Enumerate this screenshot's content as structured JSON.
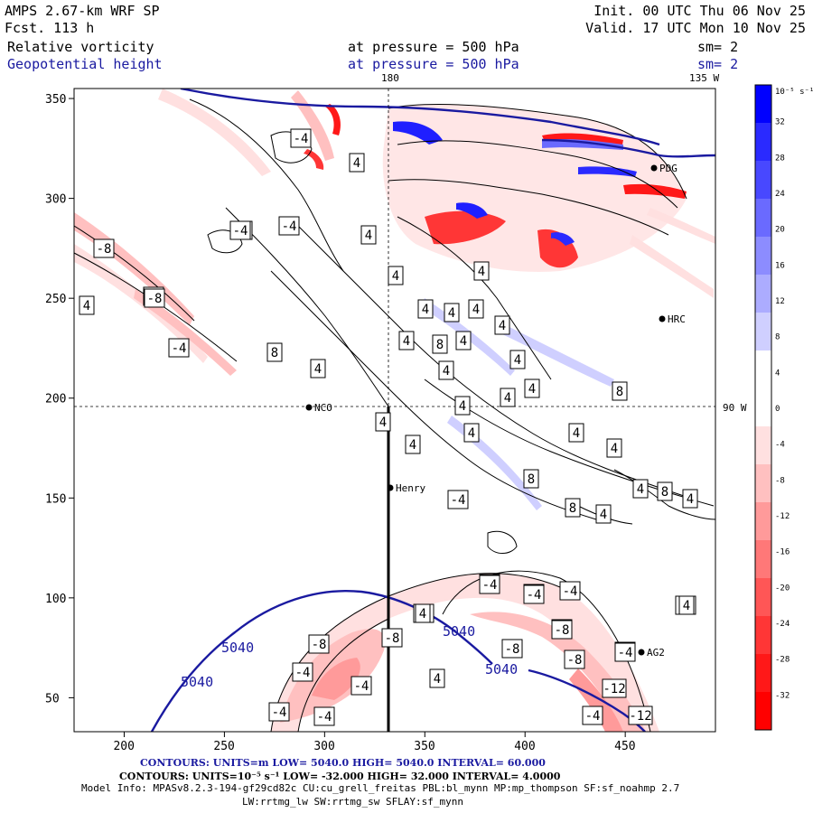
{
  "header": {
    "model": "AMPS 2.67-km WRF SP",
    "fcst": "Fcst.  113 h",
    "init": "Init. 00 UTC Thu 06 Nov 25",
    "valid": "Valid. 17 UTC Mon 10 Nov 25",
    "field1": "Relative vorticity",
    "field1_level": "at pressure =  500 hPa",
    "field1_sm": "sm= 2",
    "field2": "Geopotential height",
    "field2_level": "at pressure =  500 hPa",
    "field2_sm": "sm= 2"
  },
  "map": {
    "lon_180": "180",
    "lon_135w": "135 W",
    "lon_90w": "90 W",
    "x_ticks": [
      "200",
      "250",
      "300",
      "350",
      "400",
      "450"
    ],
    "y_ticks": [
      "50",
      "100",
      "150",
      "200",
      "250",
      "300",
      "350"
    ],
    "stations": [
      {
        "name": "NCO"
      },
      {
        "name": "Henry"
      },
      {
        "name": "AG2"
      },
      {
        "name": "HRC"
      },
      {
        "name": "PDG"
      }
    ],
    "height_labels": [
      "5040",
      "5040",
      "5040",
      "5040"
    ],
    "vort_labels": [
      "-8",
      "-4",
      "4",
      "-4",
      "4",
      "-4",
      "-4",
      "-8",
      "-8",
      "-4",
      "4",
      "4",
      "4",
      "4",
      "4",
      "4",
      "8",
      "4",
      "4",
      "4",
      "8",
      "4",
      "4",
      "4",
      "4",
      "4",
      "4",
      "4",
      "4",
      "4",
      "4",
      "8",
      "4",
      "4",
      "8",
      "4",
      "8",
      "8",
      "4",
      "-4",
      "4",
      "-4",
      "-4",
      "-4",
      "-4",
      "-8",
      "-4",
      "-8",
      "-8",
      "-8",
      "-4",
      "-8",
      "-4",
      "-8",
      "-4",
      "-12",
      "4",
      "-4",
      "-4",
      "-12",
      "-4",
      "-4",
      "-8",
      "4",
      "-4"
    ]
  },
  "colorbar": {
    "unit": "10⁻⁵ s⁻¹",
    "ticks": [
      "32",
      "28",
      "24",
      "20",
      "16",
      "12",
      "8",
      "4",
      "0",
      "-4",
      "-8",
      "-12",
      "-16",
      "-20",
      "-24",
      "-28",
      "-32"
    ],
    "colors": [
      "#0000ff",
      "#2a2aff",
      "#4848ff",
      "#6a6aff",
      "#8c8cff",
      "#acacff",
      "#cfcfff",
      "#ffffff",
      "#ffffff",
      "#ffe0e0",
      "#ffc0c0",
      "#ff9a9a",
      "#ff7878",
      "#ff5656",
      "#ff3636",
      "#ff1818",
      "#ff0000"
    ]
  },
  "footer": {
    "line1": "CONTOURS:  UNITS=m  LOW=  5040.0         HIGH=  5040.0         INTERVAL=   60.000",
    "line2": "CONTOURS:  UNITS=10⁻⁵ s⁻¹   LOW= -32.000        HIGH=  32.000        INTERVAL=   4.0000",
    "line3": "Model Info: MPASv8.2.3-194-gf29cd82c CU:cu_grell_freitas PBL:bl_mynn MP:mp_thompson SF:sf_noahmp 2.7",
    "line4": "LW:rrtmg_lw SW:rrtmg_sw SFLAY:sf_mynn"
  },
  "colors": {
    "height_contour": "#1a1aa0",
    "positive": "#0000ff",
    "negative": "#ff0000"
  }
}
